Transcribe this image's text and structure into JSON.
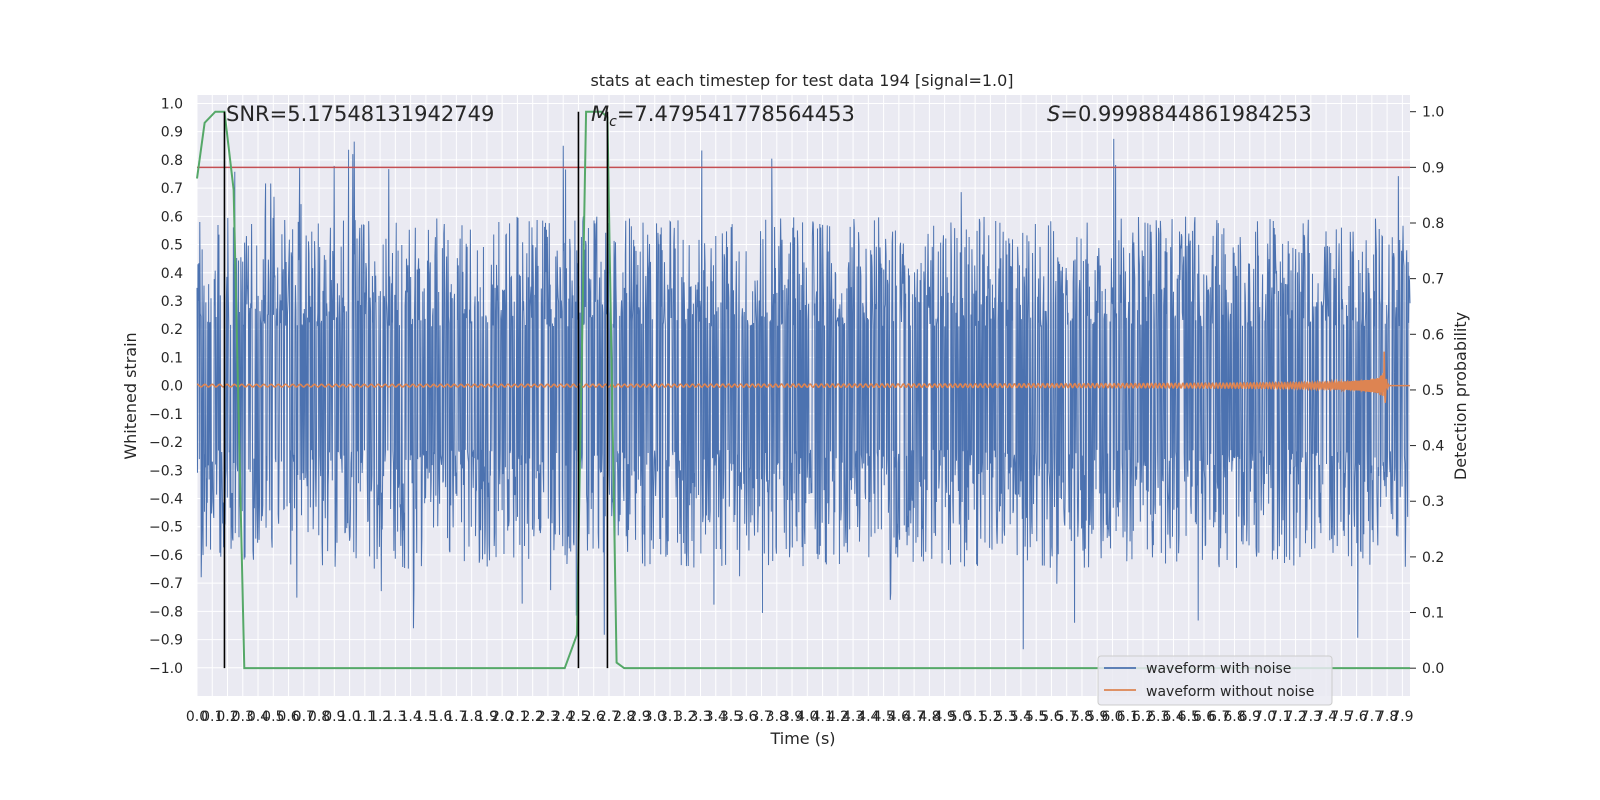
{
  "chart_data": {
    "type": "line",
    "title": "stats at each timestep for test data 194 [signal=1.0]",
    "xlabel": "Time (s)",
    "ylabel_left": "Whitened strain",
    "ylabel_right": "Detection probability",
    "xlim": [
      0.0,
      7.95
    ],
    "ylim_left": [
      -1.1,
      1.03
    ],
    "ylim_right": [
      -0.05,
      1.03
    ],
    "x_ticks": [
      "0.0",
      "0.1",
      "0.2",
      "0.3",
      "0.4",
      "0.5",
      "0.6",
      "0.7",
      "0.8",
      "0.9",
      "1.0",
      "1.1",
      "1.2",
      "1.3",
      "1.4",
      "1.5",
      "1.6",
      "1.7",
      "1.8",
      "1.9",
      "2.0",
      "2.1",
      "2.2",
      "2.3",
      "2.4",
      "2.5",
      "2.6",
      "2.7",
      "2.8",
      "2.9",
      "3.0",
      "3.1",
      "3.2",
      "3.3",
      "3.4",
      "3.5",
      "3.6",
      "3.7",
      "3.8",
      "3.9",
      "4.0",
      "4.1",
      "4.2",
      "4.3",
      "4.4",
      "4.5",
      "4.6",
      "4.7",
      "4.8",
      "4.9",
      "5.0",
      "5.1",
      "5.2",
      "5.3",
      "5.4",
      "5.5",
      "5.6",
      "5.7",
      "5.8",
      "5.9",
      "6.0",
      "6.1",
      "6.2",
      "6.3",
      "6.4",
      "6.5",
      "6.6",
      "6.7",
      "6.8",
      "6.9",
      "7.0",
      "7.1",
      "7.2",
      "7.3",
      "7.4",
      "7.5",
      "7.6",
      "7.7",
      "7.8",
      "7.9"
    ],
    "y_ticks_left": [
      "−1.0",
      "−0.9",
      "−0.8",
      "−0.7",
      "−0.6",
      "−0.5",
      "−0.4",
      "−0.3",
      "−0.2",
      "−0.1",
      "0.0",
      "0.1",
      "0.2",
      "0.3",
      "0.4",
      "0.5",
      "0.6",
      "0.7",
      "0.8",
      "0.9",
      "1.0"
    ],
    "y_ticks_right": [
      "0.0",
      "0.1",
      "0.2",
      "0.3",
      "0.4",
      "0.5",
      "0.6",
      "0.7",
      "0.8",
      "0.9",
      "1.0"
    ],
    "threshold": 0.9,
    "vlines": [
      0.18,
      2.5,
      2.69
    ],
    "detection_probability": {
      "x": [
        0.0,
        0.05,
        0.12,
        0.18,
        0.24,
        0.31,
        0.39,
        2.41,
        2.49,
        2.55,
        2.6,
        2.65,
        2.69,
        2.75,
        2.8,
        7.95
      ],
      "y": [
        0.88,
        0.98,
        1.0,
        1.0,
        0.86,
        0.0,
        0.0,
        0.0,
        0.06,
        1.0,
        1.0,
        1.0,
        0.99,
        0.01,
        0.0,
        0.0
      ]
    },
    "series": [
      {
        "name": "waveform with noise",
        "color": "#4c72b0",
        "noise_band": [
          -0.65,
          0.6
        ],
        "max_peak": 0.93,
        "min_peak": -1.0
      },
      {
        "name": "waveform without noise",
        "color": "#dd8452",
        "peak_time": 7.78,
        "peak_amplitude": 0.15
      }
    ],
    "annotations": {
      "snr": "SNR=5.17548131942749",
      "mc_prefix": "M",
      "mc_sub": "c",
      "mc_value": "=7.479541778564453",
      "s_prefix": "S",
      "s_value": "=0.9998844861984253"
    },
    "legend_position": "lower right"
  },
  "colors": {
    "background": "#eaeaf2",
    "grid": "#ffffff",
    "noisy": "#4c72b0",
    "clean": "#dd8452",
    "probability": "#55a868",
    "threshold": "#c44e52",
    "vline": "#000000"
  }
}
